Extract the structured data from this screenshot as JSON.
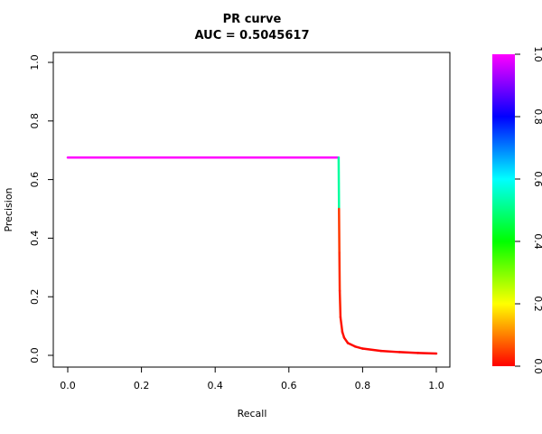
{
  "chart_data": {
    "type": "line",
    "title": "PR curve",
    "subtitle": "AUC = 0.5045617",
    "xlabel": "Recall",
    "ylabel": "Precision",
    "xlim": [
      0,
      1
    ],
    "ylim": [
      0,
      1
    ],
    "xticks": [
      "0.0",
      "0.2",
      "0.4",
      "0.6",
      "0.8",
      "1.0"
    ],
    "yticks": [
      "0.0",
      "0.2",
      "0.4",
      "0.6",
      "0.8",
      "1.0"
    ],
    "grid": false,
    "series": [
      {
        "color_mode": "threshold-colormap",
        "x": [
          0.0,
          0.2,
          0.4,
          0.6,
          0.735,
          0.736,
          0.737,
          0.738,
          0.74,
          0.745,
          0.75,
          0.76,
          0.78,
          0.8,
          0.85,
          0.9,
          0.95,
          1.0
        ],
        "y": [
          0.675,
          0.675,
          0.675,
          0.675,
          0.675,
          0.5,
          0.35,
          0.22,
          0.13,
          0.08,
          0.06,
          0.042,
          0.03,
          0.023,
          0.015,
          0.011,
          0.008,
          0.006
        ],
        "threshold": [
          1.0,
          1.0,
          1.0,
          1.0,
          1.0,
          0.05,
          0.04,
          0.03,
          0.02,
          0.015,
          0.012,
          0.01,
          0.008,
          0.006,
          0.004,
          0.003,
          0.002,
          0.0
        ]
      }
    ],
    "colorbar": {
      "range": [
        0,
        1
      ],
      "ticks": [
        "0.0",
        "0.2",
        "0.4",
        "0.6",
        "0.8",
        "1.0"
      ],
      "colors": [
        "#ff0000",
        "#ffff00",
        "#00ff00",
        "#00ffff",
        "#0000ff",
        "#ff00ff"
      ]
    }
  }
}
